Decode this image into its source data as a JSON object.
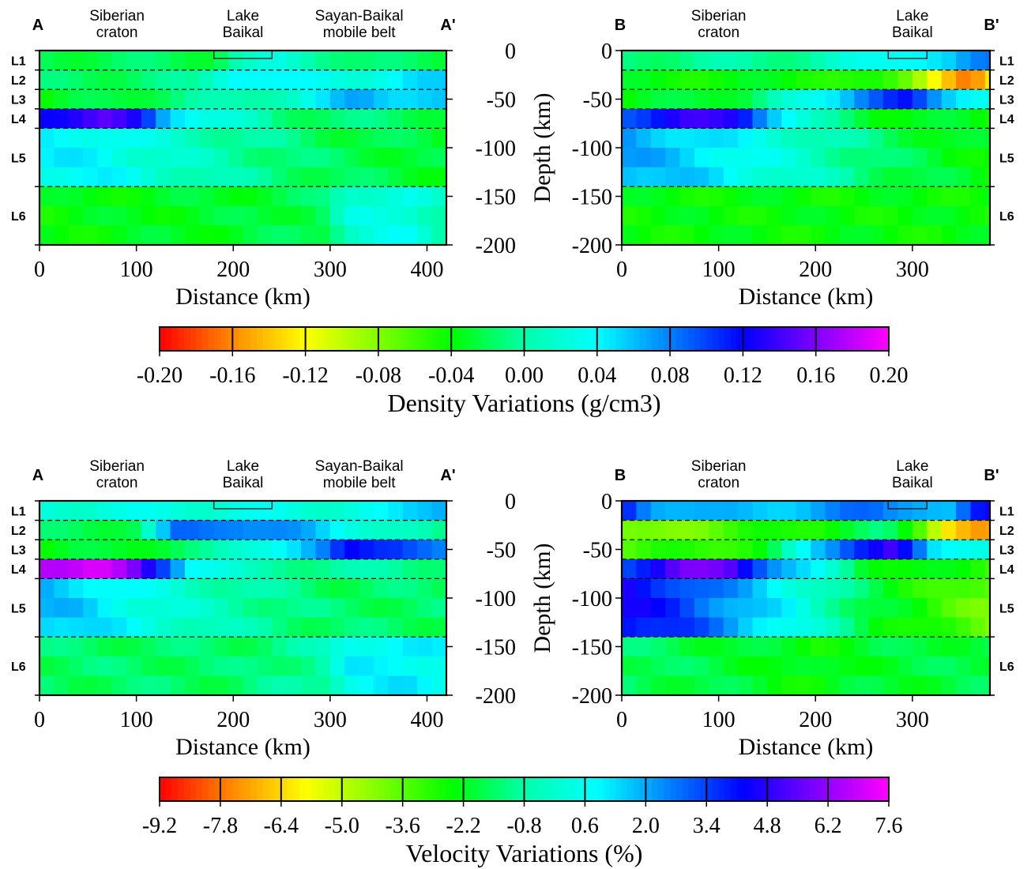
{
  "chart_data": [
    {
      "type": "heatmap",
      "profile": "A-A'",
      "quantity": "density",
      "end_labels": [
        "A",
        "A'"
      ],
      "regions": [
        {
          "lines": [
            "Siberian",
            "craton"
          ],
          "x_km": 80
        },
        {
          "lines": [
            "Lake",
            "Baikal"
          ],
          "x_km": 210
        },
        {
          "lines": [
            "Sayan-Baikal",
            "mobile belt"
          ],
          "x_km": 330
        }
      ],
      "lake_km": [
        180,
        240
      ],
      "layer_labels": [
        "L1",
        "L2",
        "L3",
        "L4",
        "L5",
        "L6"
      ],
      "layer_label_side": "left",
      "depth_axis_side": "right",
      "layer_boundaries_km": [
        20,
        40,
        60,
        80,
        140
      ],
      "xlabel": "Distance (km)",
      "ylabel": "Depth (km)",
      "xlim": [
        0,
        420
      ],
      "ylim": [
        -200,
        0
      ],
      "xticks": [
        0,
        100,
        200,
        300,
        400
      ],
      "yticks": [
        0,
        -50,
        -100,
        -150,
        -200
      ],
      "layers": [
        {
          "nodes": [
            0,
            180,
            200,
            250,
            300,
            340,
            420
          ],
          "values": [
            -0.02,
            -0.02,
            0.0,
            0.02,
            0.0,
            -0.02,
            -0.02
          ]
        },
        {
          "nodes": [
            0,
            160,
            200,
            260,
            330,
            420
          ],
          "values": [
            -0.02,
            -0.01,
            0.05,
            0.03,
            0.03,
            0.05
          ]
        },
        {
          "nodes": [
            0,
            200,
            270,
            330,
            370,
            420
          ],
          "values": [
            -0.04,
            0.0,
            0.02,
            0.07,
            0.06,
            0.05
          ]
        },
        {
          "nodes": [
            0,
            70,
            100,
            130,
            170,
            250,
            420
          ],
          "values": [
            0.13,
            0.14,
            0.12,
            0.07,
            0.03,
            -0.01,
            -0.02
          ]
        },
        {
          "nodes": [
            0,
            60,
            120,
            200,
            300,
            420
          ],
          "values": [
            0.04,
            0.04,
            0.02,
            0.0,
            -0.02,
            -0.03
          ]
        },
        {
          "nodes": [
            0,
            200,
            290,
            320,
            380,
            420
          ],
          "values": [
            -0.04,
            -0.03,
            -0.02,
            0.02,
            0.03,
            0.0
          ]
        }
      ]
    },
    {
      "type": "heatmap",
      "profile": "B-B'",
      "quantity": "density",
      "end_labels": [
        "B",
        "B'"
      ],
      "regions": [
        {
          "lines": [
            "Siberian",
            "craton"
          ],
          "x_km": 100
        },
        {
          "lines": [
            "Lake",
            "Baikal"
          ],
          "x_km": 300
        }
      ],
      "lake_km": [
        275,
        315
      ],
      "layer_labels": [
        "L1",
        "L2",
        "L3",
        "L4",
        "L5",
        "L6"
      ],
      "layer_label_side": "right",
      "depth_axis_side": "left",
      "layer_boundaries_km": [
        20,
        40,
        60,
        80,
        140
      ],
      "xlabel": "Distance (km)",
      "ylabel": "",
      "xlim": [
        0,
        380
      ],
      "ylim": [
        -200,
        0
      ],
      "xticks": [
        0,
        100,
        200,
        300
      ],
      "yticks": [
        0,
        -50,
        -100,
        -150,
        -200
      ],
      "layers": [
        {
          "nodes": [
            0,
            200,
            260,
            300,
            340,
            380
          ],
          "values": [
            -0.01,
            0.0,
            0.03,
            0.05,
            0.05,
            0.08
          ]
        },
        {
          "nodes": [
            0,
            200,
            270,
            300,
            330,
            360,
            380
          ],
          "values": [
            -0.04,
            -0.04,
            -0.06,
            -0.08,
            -0.12,
            -0.17,
            -0.13
          ]
        },
        {
          "nodes": [
            0,
            130,
            200,
            250,
            290,
            330,
            380
          ],
          "values": [
            -0.04,
            -0.02,
            0.03,
            0.09,
            0.11,
            0.06,
            0.04
          ]
        },
        {
          "nodes": [
            0,
            60,
            120,
            160,
            200,
            260,
            380
          ],
          "values": [
            0.1,
            0.13,
            0.13,
            0.06,
            0.0,
            -0.03,
            -0.04
          ]
        },
        {
          "nodes": [
            0,
            80,
            140,
            200,
            280,
            380
          ],
          "values": [
            0.07,
            0.05,
            0.03,
            0.01,
            -0.02,
            -0.04
          ]
        },
        {
          "nodes": [
            0,
            380
          ],
          "values": [
            -0.04,
            -0.04
          ]
        }
      ]
    },
    {
      "type": "heatmap",
      "profile": "A-A'",
      "quantity": "velocity",
      "end_labels": [
        "A",
        "A'"
      ],
      "regions": [
        {
          "lines": [
            "Siberian",
            "craton"
          ],
          "x_km": 80
        },
        {
          "lines": [
            "Lake",
            "Baikal"
          ],
          "x_km": 210
        },
        {
          "lines": [
            "Sayan-Baikal",
            "mobile belt"
          ],
          "x_km": 330
        }
      ],
      "lake_km": [
        180,
        240
      ],
      "layer_labels": [
        "L1",
        "L2",
        "L3",
        "L4",
        "L5",
        "L6"
      ],
      "layer_label_side": "left",
      "depth_axis_side": "right",
      "layer_boundaries_km": [
        20,
        40,
        60,
        80,
        140
      ],
      "xlabel": "Distance (km)",
      "ylabel": "Depth (km)",
      "xlim": [
        0,
        420
      ],
      "ylim": [
        -200,
        0
      ],
      "xticks": [
        0,
        100,
        200,
        300,
        400
      ],
      "yticks": [
        0,
        -50,
        -100,
        -150,
        -200
      ],
      "layers": [
        {
          "nodes": [
            0,
            200,
            300,
            360,
            390,
            420
          ],
          "values": [
            0.2,
            0.3,
            0.2,
            0.5,
            1.5,
            2.5
          ]
        },
        {
          "nodes": [
            0,
            100,
            140,
            200,
            260,
            330,
            420
          ],
          "values": [
            -1.8,
            -1.5,
            2.5,
            3.0,
            2.0,
            0.5,
            -1.5
          ]
        },
        {
          "nodes": [
            0,
            170,
            220,
            290,
            320,
            370,
            420
          ],
          "values": [
            -2.5,
            -1.5,
            0.5,
            2.0,
            4.0,
            4.0,
            2.0
          ]
        },
        {
          "nodes": [
            0,
            60,
            100,
            130,
            160,
            220,
            420
          ],
          "values": [
            7.0,
            7.0,
            5.5,
            3.5,
            1.0,
            -0.8,
            -1.0
          ]
        },
        {
          "nodes": [
            0,
            40,
            100,
            180,
            300,
            420
          ],
          "values": [
            1.8,
            1.5,
            0.5,
            -0.5,
            -1.5,
            -1.5
          ]
        },
        {
          "nodes": [
            0,
            200,
            290,
            320,
            380,
            420
          ],
          "values": [
            -1.5,
            -1.5,
            -0.8,
            0.8,
            1.0,
            0.6
          ]
        }
      ]
    },
    {
      "type": "heatmap",
      "profile": "B-B'",
      "quantity": "velocity",
      "end_labels": [
        "B",
        "B'"
      ],
      "regions": [
        {
          "lines": [
            "Siberian",
            "craton"
          ],
          "x_km": 100
        },
        {
          "lines": [
            "Lake",
            "Baikal"
          ],
          "x_km": 300
        }
      ],
      "lake_km": [
        275,
        315
      ],
      "layer_labels": [
        "L1",
        "L2",
        "L3",
        "L4",
        "L5",
        "L6"
      ],
      "layer_label_side": "right",
      "depth_axis_side": "left",
      "layer_boundaries_km": [
        20,
        40,
        60,
        80,
        140
      ],
      "xlabel": "Distance (km)",
      "ylabel": "",
      "xlim": [
        0,
        380
      ],
      "ylim": [
        -200,
        0
      ],
      "xticks": [
        0,
        100,
        200,
        300
      ],
      "yticks": [
        0,
        -50,
        -100,
        -150,
        -200
      ],
      "layers": [
        {
          "nodes": [
            0,
            30,
            100,
            200,
            260,
            300,
            340,
            380
          ],
          "values": [
            4.0,
            2.5,
            1.5,
            2.0,
            2.8,
            2.5,
            1.5,
            4.5
          ]
        },
        {
          "nodes": [
            0,
            200,
            270,
            310,
            340,
            370,
            380
          ],
          "values": [
            -4.5,
            -2.5,
            -1.5,
            -3.5,
            -6.0,
            -7.5,
            -7.5
          ]
        },
        {
          "nodes": [
            0,
            150,
            200,
            240,
            280,
            320,
            380
          ],
          "values": [
            -3.5,
            -2.5,
            1.5,
            4.0,
            5.0,
            1.0,
            0.8
          ]
        },
        {
          "nodes": [
            0,
            60,
            110,
            160,
            200,
            250,
            380
          ],
          "values": [
            3.5,
            5.5,
            5.5,
            2.5,
            0.5,
            -2.0,
            -3.0
          ]
        },
        {
          "nodes": [
            0,
            60,
            120,
            180,
            260,
            380
          ],
          "values": [
            4.5,
            3.5,
            2.0,
            0.5,
            -2.0,
            -4.0
          ]
        },
        {
          "nodes": [
            0,
            120,
            200,
            260,
            380
          ],
          "values": [
            -1.5,
            -2.0,
            -2.5,
            -2.0,
            -1.8
          ]
        }
      ]
    }
  ],
  "colorbars": [
    {
      "label": "Density Variations (g/cm3)",
      "ticks": [
        "-0.20",
        "-0.16",
        "-0.12",
        "-0.08",
        "-0.04",
        "0.00",
        "0.04",
        "0.08",
        "0.12",
        "0.16",
        "0.20"
      ],
      "range": [
        -0.2,
        0.2
      ]
    },
    {
      "label": "Velocity Variations (%)",
      "ticks": [
        "-9.2",
        "-7.8",
        "-6.4",
        "-5.0",
        "-3.6",
        "-2.2",
        "-0.8",
        "0.6",
        "2.0",
        "3.4",
        "4.8",
        "6.2",
        "7.6"
      ],
      "range": [
        -9.2,
        7.6
      ]
    }
  ],
  "colors": {
    "palette": [
      "#ff0000",
      "#ff8a00",
      "#ffff00",
      "#80ff00",
      "#00ff00",
      "#00ffaa",
      "#00ffff",
      "#0080ff",
      "#0000ff",
      "#7f00ff",
      "#ff00ff"
    ],
    "boundary_line": "#000000"
  }
}
